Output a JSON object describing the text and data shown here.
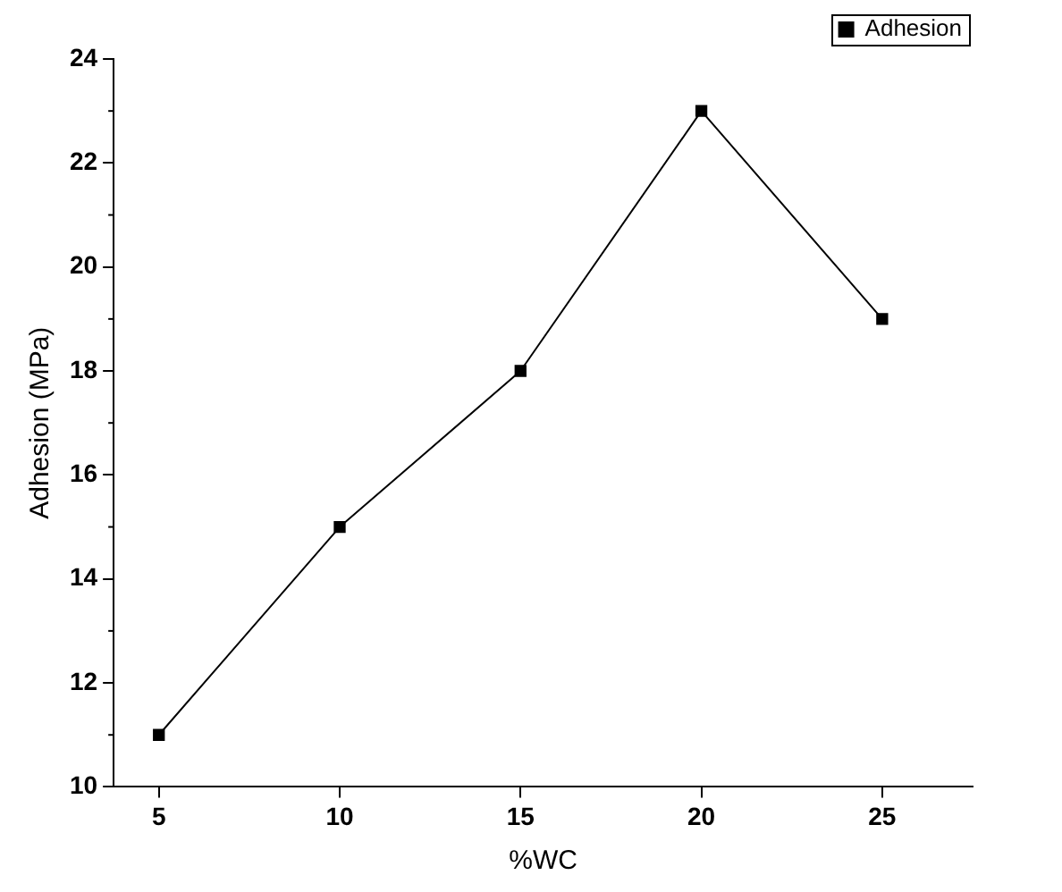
{
  "chart_data": {
    "type": "line",
    "xlabel": "%WC",
    "ylabel": "Adhesion (MPa)",
    "x": [
      5,
      10,
      15,
      20,
      25
    ],
    "series": [
      {
        "name": "Adhesion",
        "color": "#000000",
        "values": [
          11,
          15,
          18,
          23,
          19
        ]
      }
    ],
    "xlim": [
      3.75,
      27.5
    ],
    "xticks": [
      5,
      10,
      15,
      20,
      25
    ],
    "ylim": [
      10,
      24
    ],
    "yticks": [
      10,
      12,
      14,
      16,
      18,
      20,
      22,
      24
    ],
    "grid": false,
    "legend": "top right",
    "marker": "square",
    "line_style": "solid"
  }
}
